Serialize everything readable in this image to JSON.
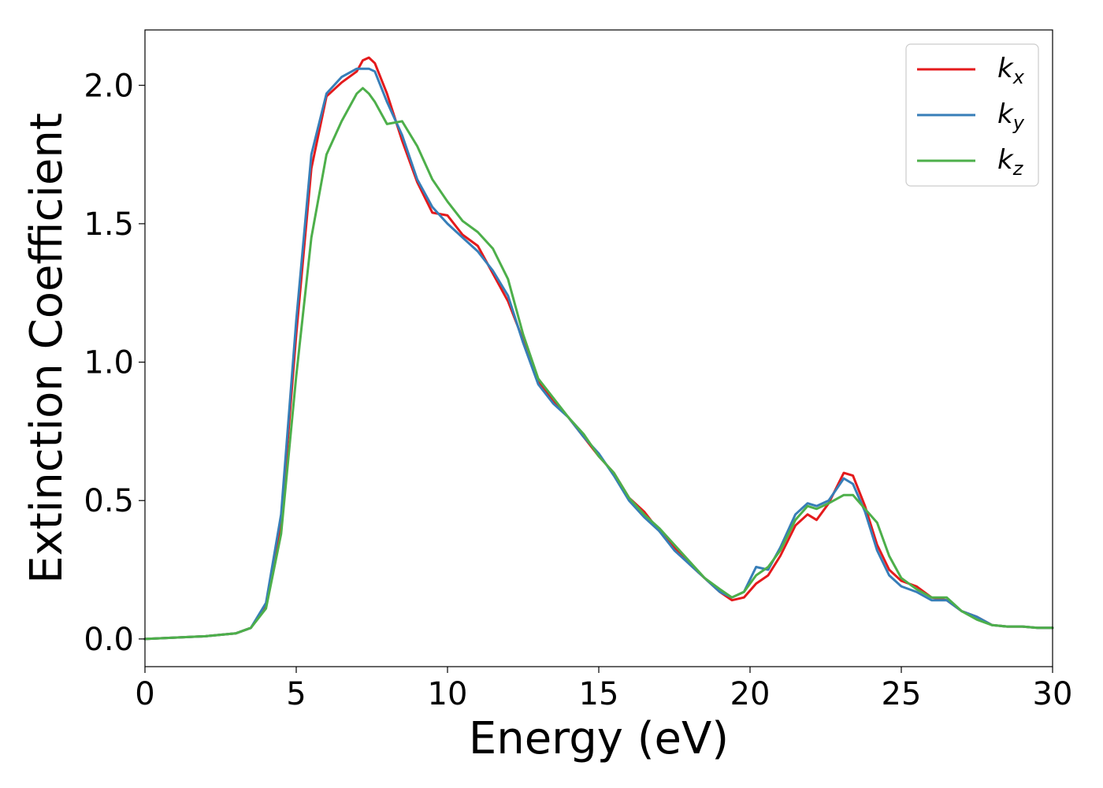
{
  "chart_data": {
    "type": "line",
    "xlabel": "Energy (eV)",
    "ylabel": "Extinction Coefficient",
    "xlim": [
      0,
      30
    ],
    "ylim": [
      -0.1,
      2.2
    ],
    "xticks": [
      0,
      5,
      10,
      15,
      20,
      25,
      30
    ],
    "xtick_labels": [
      "0",
      "5",
      "10",
      "15",
      "20",
      "25",
      "30"
    ],
    "yticks": [
      0.0,
      0.5,
      1.0,
      1.5,
      2.0
    ],
    "ytick_labels": [
      "0.0",
      "0.5",
      "1.0",
      "1.5",
      "2.0"
    ],
    "grid": false,
    "legend_position": "top-right",
    "series": [
      {
        "name": "k_x",
        "label_base": "k",
        "label_sub": "x",
        "color": "#e41a1c",
        "x": [
          0,
          1,
          2,
          3,
          3.5,
          4,
          4.5,
          5,
          5.5,
          6,
          6.5,
          7,
          7.2,
          7.4,
          7.6,
          8,
          8.5,
          9,
          9.5,
          10,
          10.5,
          11,
          11.5,
          12,
          12.5,
          13,
          13.5,
          14,
          14.5,
          15,
          15.5,
          16,
          16.5,
          17,
          17.5,
          18,
          18.5,
          19,
          19.4,
          19.8,
          20.2,
          20.6,
          21,
          21.5,
          21.9,
          22.2,
          22.6,
          23.1,
          23.4,
          23.8,
          24.2,
          24.6,
          25,
          25.5,
          26,
          26.5,
          27,
          27.5,
          28,
          28.5,
          29,
          29.5,
          30
        ],
        "values": [
          0.0,
          0.005,
          0.01,
          0.02,
          0.04,
          0.12,
          0.42,
          1.1,
          1.7,
          1.96,
          2.01,
          2.05,
          2.09,
          2.1,
          2.08,
          1.97,
          1.8,
          1.65,
          1.54,
          1.53,
          1.46,
          1.42,
          1.32,
          1.22,
          1.08,
          0.93,
          0.86,
          0.8,
          0.73,
          0.66,
          0.6,
          0.51,
          0.46,
          0.39,
          0.33,
          0.27,
          0.22,
          0.17,
          0.14,
          0.15,
          0.2,
          0.23,
          0.3,
          0.41,
          0.45,
          0.43,
          0.49,
          0.6,
          0.59,
          0.48,
          0.34,
          0.25,
          0.21,
          0.19,
          0.15,
          0.14,
          0.1,
          0.08,
          0.05,
          0.045,
          0.045,
          0.04,
          0.04
        ]
      },
      {
        "name": "k_y",
        "label_base": "k",
        "label_sub": "y",
        "color": "#377eb8",
        "x": [
          0,
          1,
          2,
          3,
          3.5,
          4,
          4.5,
          5,
          5.5,
          6,
          6.5,
          7,
          7.2,
          7.4,
          7.6,
          8,
          8.5,
          9,
          9.5,
          10,
          10.5,
          11,
          11.5,
          12,
          12.5,
          13,
          13.5,
          14,
          14.5,
          15,
          15.5,
          16,
          16.5,
          17,
          17.5,
          18,
          18.5,
          19,
          19.4,
          19.8,
          20.2,
          20.6,
          21,
          21.5,
          21.9,
          22.2,
          22.6,
          23.1,
          23.4,
          23.8,
          24.2,
          24.6,
          25,
          25.5,
          26,
          26.5,
          27,
          27.5,
          28,
          28.5,
          29,
          29.5,
          30
        ],
        "values": [
          0.0,
          0.005,
          0.01,
          0.02,
          0.04,
          0.13,
          0.45,
          1.15,
          1.75,
          1.97,
          2.03,
          2.06,
          2.06,
          2.06,
          2.05,
          1.94,
          1.82,
          1.66,
          1.56,
          1.5,
          1.45,
          1.4,
          1.33,
          1.24,
          1.07,
          0.92,
          0.85,
          0.8,
          0.73,
          0.67,
          0.59,
          0.5,
          0.44,
          0.39,
          0.32,
          0.27,
          0.22,
          0.17,
          0.15,
          0.17,
          0.26,
          0.25,
          0.33,
          0.45,
          0.49,
          0.48,
          0.5,
          0.58,
          0.56,
          0.46,
          0.32,
          0.23,
          0.19,
          0.17,
          0.14,
          0.14,
          0.1,
          0.08,
          0.05,
          0.045,
          0.045,
          0.04,
          0.04
        ]
      },
      {
        "name": "k_z",
        "label_base": "k",
        "label_sub": "z",
        "color": "#4daf4a",
        "x": [
          0,
          1,
          2,
          3,
          3.5,
          4,
          4.5,
          5,
          5.5,
          6,
          6.5,
          7,
          7.2,
          7.4,
          7.6,
          8,
          8.5,
          9,
          9.5,
          10,
          10.5,
          11,
          11.5,
          12,
          12.5,
          13,
          13.5,
          14,
          14.5,
          15,
          15.5,
          16,
          16.5,
          17,
          17.5,
          18,
          18.5,
          19,
          19.4,
          19.8,
          20.2,
          20.6,
          21,
          21.5,
          21.9,
          22.2,
          22.6,
          23.1,
          23.4,
          23.8,
          24.2,
          24.6,
          25,
          25.5,
          26,
          26.5,
          27,
          27.5,
          28,
          28.5,
          29,
          29.5,
          30
        ],
        "values": [
          0.0,
          0.005,
          0.01,
          0.02,
          0.04,
          0.11,
          0.38,
          0.95,
          1.45,
          1.75,
          1.87,
          1.97,
          1.99,
          1.97,
          1.94,
          1.86,
          1.87,
          1.78,
          1.66,
          1.58,
          1.51,
          1.47,
          1.41,
          1.3,
          1.1,
          0.94,
          0.87,
          0.8,
          0.74,
          0.66,
          0.6,
          0.51,
          0.45,
          0.4,
          0.34,
          0.28,
          0.22,
          0.18,
          0.15,
          0.17,
          0.23,
          0.26,
          0.32,
          0.43,
          0.48,
          0.47,
          0.49,
          0.52,
          0.52,
          0.47,
          0.42,
          0.3,
          0.22,
          0.18,
          0.15,
          0.15,
          0.1,
          0.07,
          0.05,
          0.045,
          0.045,
          0.04,
          0.04
        ]
      }
    ]
  }
}
